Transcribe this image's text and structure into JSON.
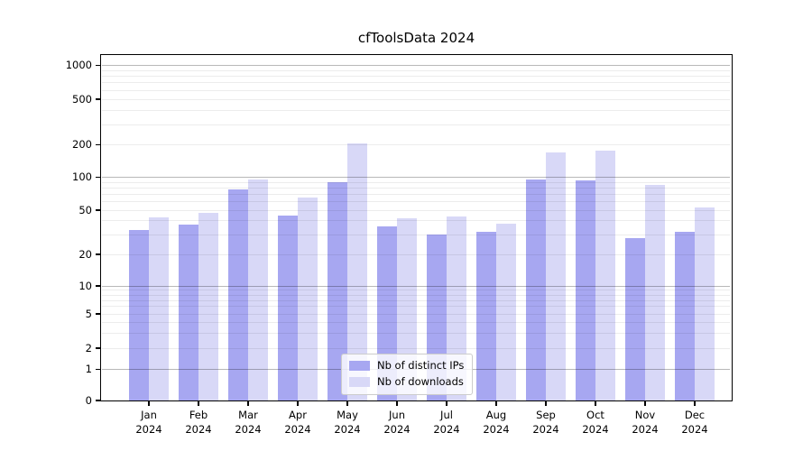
{
  "chart_data": {
    "type": "bar",
    "title": "cfToolsData 2024",
    "categories": [
      "Jan",
      "Feb",
      "Mar",
      "Apr",
      "May",
      "Jun",
      "Jul",
      "Aug",
      "Sep",
      "Oct",
      "Nov",
      "Dec"
    ],
    "year_label": "2024",
    "series": [
      {
        "name": "Nb of distinct IPs",
        "color": "#a7a7f1",
        "values": [
          33,
          37,
          78,
          45,
          90,
          36,
          30,
          32,
          96,
          94,
          28,
          32
        ]
      },
      {
        "name": "Nb of downloads",
        "color": "#d8d8f7",
        "values": [
          43,
          47,
          95,
          65,
          205,
          42,
          44,
          38,
          170,
          175,
          85,
          53
        ]
      }
    ],
    "yscale": "symlog",
    "y_ticks": [
      0,
      1,
      2,
      5,
      10,
      20,
      50,
      100,
      200,
      500,
      1000
    ],
    "ylim": [
      0,
      1200
    ],
    "grid": true,
    "legend_position": "lower center",
    "colors": {
      "grid_major": "#b0b0b0",
      "grid_minor": "#ebebeb",
      "axis": "#000000",
      "background": "#ffffff"
    }
  }
}
